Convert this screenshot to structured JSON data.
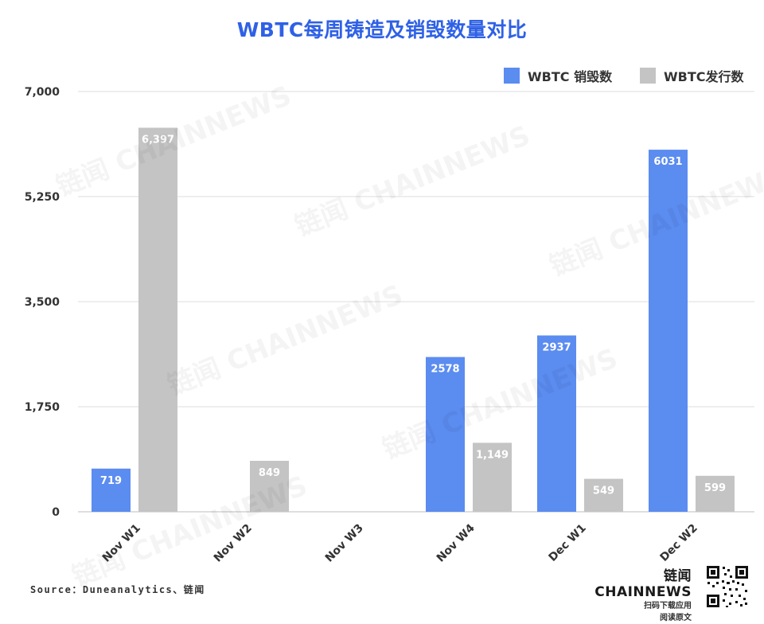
{
  "title": "WBTC每周铸造及销毁数量对比",
  "legend": [
    {
      "label": "WBTC 销毁数",
      "color": "#5b8cf0"
    },
    {
      "label": "WBTC发行数",
      "color": "#c4c4c4"
    }
  ],
  "chart_data": {
    "type": "bar",
    "categories": [
      "Nov W1",
      "Nov W2",
      "Nov W3",
      "Nov W4",
      "Dec W1",
      "Dec W2"
    ],
    "series": [
      {
        "name": "WBTC 销毁数",
        "color": "#5b8cf0",
        "values": [
          719,
          null,
          null,
          2578,
          2937,
          6031
        ],
        "labels": [
          "719",
          "",
          "",
          "2578",
          "2937",
          "6031"
        ]
      },
      {
        "name": "WBTC发行数",
        "color": "#c4c4c4",
        "values": [
          6397,
          849,
          null,
          1149,
          549,
          599
        ],
        "labels": [
          "6,397",
          "849",
          "",
          "1,149",
          "549",
          "599"
        ]
      }
    ],
    "ylim": [
      0,
      7000
    ],
    "yticks": [
      0,
      1750,
      3500,
      5250,
      7000
    ],
    "ytick_labels": [
      "0",
      "1,750",
      "3,500",
      "5,250",
      "7,000"
    ],
    "grid": true,
    "legend_position": "top-right"
  },
  "source": "Source：Duneanalytics、链闻",
  "brand": {
    "name": "链闻 CHAINNEWS",
    "line1": "扫码下载应用",
    "line2": "阅读原文"
  },
  "watermark": "链闻 CHAINNEWS"
}
